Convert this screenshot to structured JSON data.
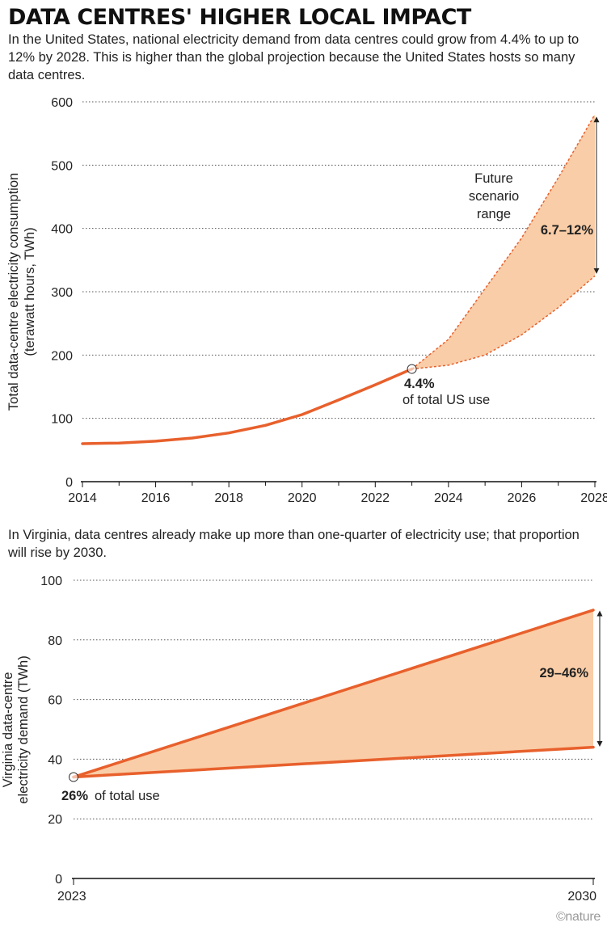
{
  "title": "DATA CENTRES' HIGHER LOCAL IMPACT",
  "subtitle": "In the United States, national electricity demand from data centres could grow from 4.4% to up to 12% by 2028. This is higher than the global projection because the United States hosts so many data centres.",
  "subtitle2": "In Virginia, data centres already make up more than one-quarter of electricity use; that proportion will rise by 2030.",
  "credit": "©nature",
  "colors": {
    "line": "#e8602c",
    "band": "#f9cda7",
    "grid": "#555555",
    "axis": "#111111"
  },
  "chart_data": [
    {
      "type": "area",
      "ylabel_line1": "Total data-centre electricity consumption",
      "ylabel_line2": "(terawatt hours, TWh)",
      "xlim": [
        2014,
        2028
      ],
      "ylim": [
        0,
        600
      ],
      "yticks": [
        0,
        100,
        200,
        300,
        400,
        500,
        600
      ],
      "xticks": [
        2014,
        2016,
        2018,
        2020,
        2022,
        2024,
        2026,
        2028
      ],
      "grid": true,
      "historical": {
        "x": [
          2014,
          2015,
          2016,
          2017,
          2018,
          2019,
          2020,
          2021,
          2022,
          2023
        ],
        "y": [
          60,
          61,
          64,
          69,
          77,
          89,
          106,
          129,
          153,
          178
        ]
      },
      "scenario_upper": {
        "x": [
          2023,
          2024,
          2025,
          2026,
          2027,
          2028
        ],
        "y": [
          178,
          225,
          305,
          385,
          480,
          580
        ]
      },
      "scenario_lower": {
        "x": [
          2023,
          2024,
          2025,
          2026,
          2027,
          2028
        ],
        "y": [
          178,
          184,
          200,
          232,
          275,
          325
        ]
      },
      "annotations": {
        "start_value": "4.4%",
        "start_text": "of total US use",
        "range_line1": "Future",
        "range_line2": "scenario",
        "range_line3": "range",
        "range_value": "6.7–12%"
      }
    },
    {
      "type": "area",
      "ylabel_line1": "Virginia data-centre",
      "ylabel_line2": "electricity demand (TWh)",
      "xlim": [
        2023,
        2030
      ],
      "ylim": [
        0,
        100
      ],
      "yticks": [
        0,
        20,
        40,
        60,
        80,
        100
      ],
      "xticks": [
        2023,
        2030
      ],
      "grid": true,
      "upper": {
        "x": [
          2023,
          2030
        ],
        "y": [
          34,
          90
        ]
      },
      "lower": {
        "x": [
          2023,
          2030
        ],
        "y": [
          34,
          44
        ]
      },
      "annotations": {
        "start_value": "26%",
        "start_text": "of total use",
        "range_value": "29–46%"
      }
    }
  ]
}
